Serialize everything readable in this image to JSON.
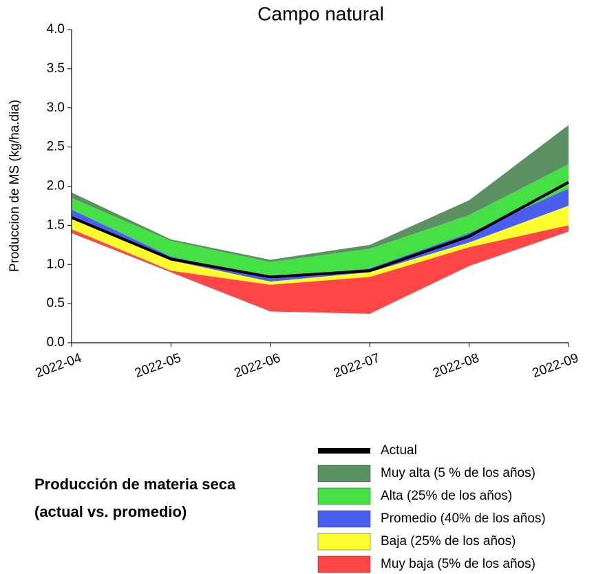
{
  "chart_data": {
    "type": "band",
    "title": "Campo natural",
    "ylabel": "Produccion de MS (kg/ha.dia)",
    "categories": [
      "2022-04",
      "2022-05",
      "2022-06",
      "2022-07",
      "2022-08",
      "2022-09"
    ],
    "ylim": [
      0,
      4
    ],
    "yticks": [
      {
        "value": 0,
        "label": "0.0"
      },
      0.5,
      {
        "value": 1,
        "label": "1.0"
      },
      1.5,
      {
        "value": 2,
        "label": "2.0"
      },
      2.5,
      {
        "value": 3,
        "label": "3.0"
      },
      3.5,
      {
        "value": 4,
        "label": "4.0"
      }
    ],
    "caption": [
      "Producción de materia seca",
      "(actual vs. promedio)"
    ],
    "series": [
      {
        "name": "Actual",
        "color": "#000000",
        "values": [
          1.6,
          1.07,
          0.84,
          0.92,
          1.36,
          2.05
        ]
      },
      {
        "name": "Muy alta (5 % de los años)",
        "color": "#5b9162",
        "lower": [
          1.85,
          1.3,
          1.03,
          1.2,
          1.63,
          2.28
        ],
        "upper": [
          1.92,
          1.32,
          1.06,
          1.25,
          1.82,
          2.78
        ]
      },
      {
        "name": "Alta (25% de los años)",
        "color": "#44e044",
        "lower": [
          1.7,
          1.1,
          0.82,
          0.95,
          1.4,
          1.97
        ],
        "upper": [
          1.85,
          1.3,
          1.03,
          1.2,
          1.63,
          2.28
        ]
      },
      {
        "name": "Promedio (40% de los años)",
        "color": "#4a5ff0",
        "lower": [
          1.58,
          1.05,
          0.78,
          0.9,
          1.28,
          1.75
        ],
        "upper": [
          1.7,
          1.1,
          0.82,
          0.95,
          1.4,
          1.97
        ]
      },
      {
        "name": "Baja (25% de los años)",
        "color": "#ffff30",
        "lower": [
          1.45,
          0.92,
          0.74,
          0.84,
          1.22,
          1.5
        ],
        "upper": [
          1.58,
          1.05,
          0.78,
          0.9,
          1.28,
          1.75
        ]
      },
      {
        "name": "Muy baja (5% de los años)",
        "color": "#ff4646",
        "lower": [
          1.4,
          0.9,
          0.4,
          0.37,
          0.98,
          1.42
        ],
        "upper": [
          1.45,
          0.92,
          0.74,
          0.84,
          1.22,
          1.5
        ]
      }
    ]
  }
}
